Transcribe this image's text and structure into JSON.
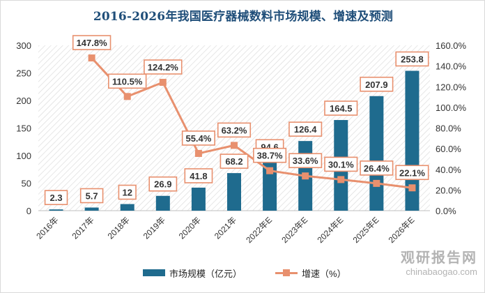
{
  "chart_data": {
    "type": "bar",
    "title": "2016-2026年我国医疗器械数料市场规模、增速及预测",
    "categories": [
      "2016年",
      "2017年",
      "2018年",
      "2019年",
      "2020年",
      "2021年",
      "2022年E",
      "2023年E",
      "2024年E",
      "2025年E",
      "2026年E"
    ],
    "series": [
      {
        "name": "市场规模（亿元）",
        "type": "bar",
        "axis": "left",
        "color": "#1f6b8e",
        "values": [
          2.3,
          5.7,
          12,
          26.9,
          41.8,
          68.2,
          94.6,
          126.4,
          164.5,
          207.9,
          253.8
        ],
        "labels": [
          "2.3",
          "5.7",
          "12",
          "26.9",
          "41.8",
          "68.2",
          "94.6",
          "126.4",
          "164.5",
          "207.9",
          "253.8"
        ]
      },
      {
        "name": "增速（%）",
        "type": "line",
        "axis": "right",
        "color": "#e8906e",
        "values": [
          null,
          147.8,
          110.5,
          124.2,
          55.4,
          63.2,
          38.7,
          33.6,
          30.1,
          26.4,
          22.1
        ],
        "labels": [
          "",
          "147.8%",
          "110.5%",
          "124.2%",
          "55.4%",
          "63.2%",
          "38.7%",
          "33.6%",
          "30.1%",
          "26.4%",
          "22.1%"
        ]
      }
    ],
    "left_axis": {
      "ylim": [
        0,
        300
      ],
      "ticks": [
        "0",
        "50",
        "100",
        "150",
        "200",
        "250",
        "300"
      ]
    },
    "right_axis": {
      "ylim": [
        0,
        160
      ],
      "ticks": [
        "0.0%",
        "20.0%",
        "40.0%",
        "60.0%",
        "80.0%",
        "100.0%",
        "120.0%",
        "140.0%",
        "160.0%"
      ]
    },
    "legend_position": "bottom",
    "grid": false
  },
  "watermark": {
    "name": "观研报告网",
    "url": "chinabaogao.com"
  },
  "colors": {
    "title": "#1f4e79",
    "bar": "#1f6b8e",
    "line": "#e8906e",
    "label_border": "#e8906e"
  }
}
